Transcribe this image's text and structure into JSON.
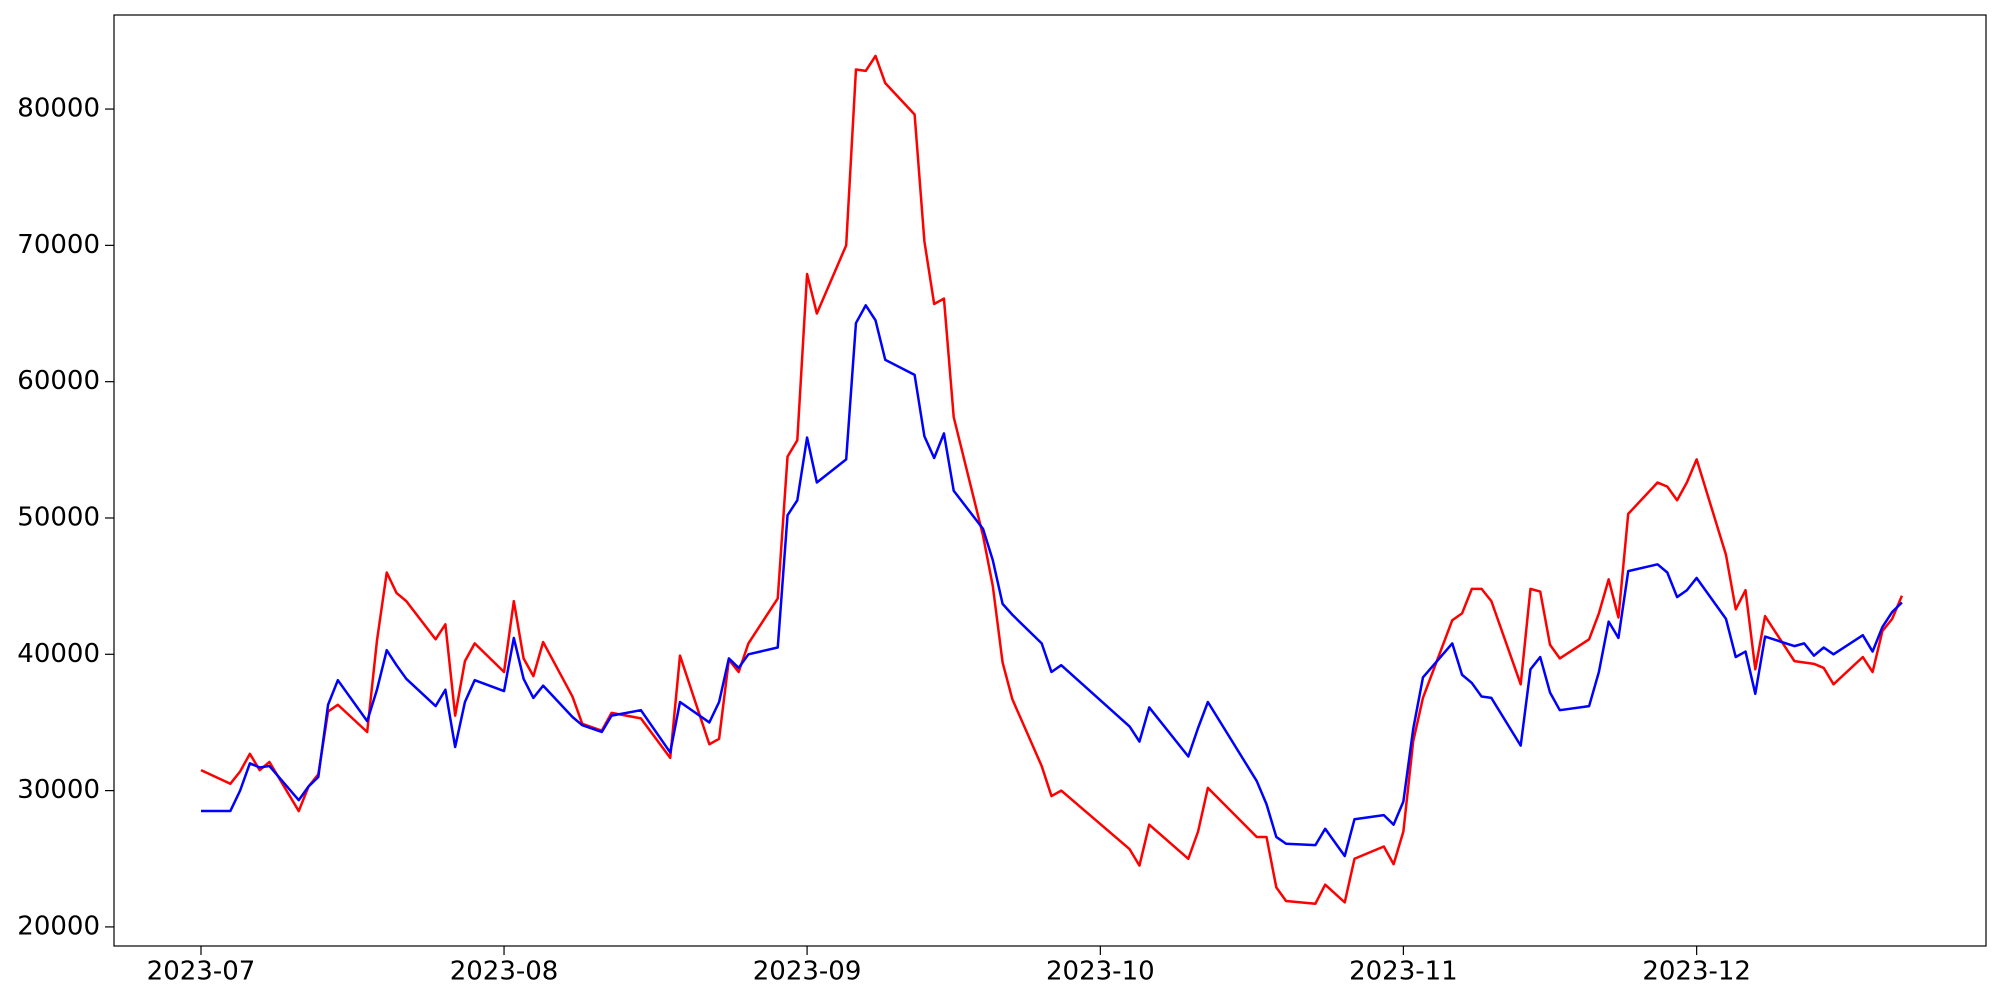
{
  "chart_data": {
    "type": "line",
    "x": [
      0,
      3,
      4,
      5,
      6,
      7,
      10,
      11,
      12,
      13,
      14,
      17,
      18,
      19,
      20,
      21,
      24,
      25,
      26,
      27,
      28,
      31,
      32,
      33,
      34,
      35,
      38,
      39,
      41,
      42,
      45,
      48,
      49,
      52,
      53,
      54,
      55,
      56,
      59,
      60,
      61,
      62,
      63,
      66,
      67,
      68,
      69,
      70,
      73,
      74,
      75,
      76,
      77,
      80,
      81,
      82,
      83,
      86,
      87,
      88,
      95,
      96,
      97,
      101,
      102,
      103,
      108,
      109,
      110,
      111,
      114,
      115,
      117,
      118,
      121,
      122,
      123,
      124,
      125,
      128,
      129,
      130,
      131,
      132,
      135,
      136,
      137,
      138,
      139,
      142,
      143,
      144,
      145,
      146,
      149,
      150,
      151,
      152,
      153,
      156,
      157,
      158,
      159,
      160,
      163,
      164,
      165,
      166,
      167,
      170,
      171,
      172,
      173,
      174
    ],
    "series": [
      {
        "color": "#ff0000",
        "values": [
          31500,
          30500,
          31400,
          32700,
          31500,
          32100,
          28500,
          30300,
          31200,
          35800,
          36300,
          34300,
          41000,
          46000,
          44500,
          43900,
          41100,
          42200,
          35500,
          39500,
          40800,
          38700,
          43900,
          39700,
          38400,
          40900,
          36900,
          34900,
          34400,
          35700,
          35300,
          32400,
          39900,
          33400,
          33800,
          39600,
          38700,
          40800,
          44100,
          54500,
          55700,
          67900,
          65000,
          70000,
          82900,
          82800,
          83900,
          81900,
          79600,
          70300,
          65700,
          66100,
          57400,
          48700,
          45000,
          39400,
          36700,
          31800,
          29600,
          30000,
          25700,
          24500,
          27500,
          25000,
          27000,
          30200,
          26600,
          26600,
          22900,
          21900,
          21700,
          23100,
          21800,
          25000,
          25900,
          24600,
          27000,
          33600,
          36800,
          42500,
          43000,
          44800,
          44800,
          43900,
          37800,
          44800,
          44600,
          40700,
          39700,
          41100,
          43000,
          45500,
          42700,
          50300,
          52600,
          52300,
          51300,
          52600,
          54300,
          47300,
          43300,
          44700,
          38900,
          42800,
          39500,
          39400,
          39300,
          39000,
          37800,
          39800,
          38700,
          41700,
          42600,
          44300
        ]
      },
      {
        "color": "#0000ff",
        "values": [
          28500,
          28500,
          30000,
          32000,
          31700,
          31800,
          29300,
          30300,
          31000,
          36300,
          38100,
          35100,
          37400,
          40300,
          39200,
          38200,
          36200,
          37400,
          33200,
          36500,
          38100,
          37300,
          41200,
          38200,
          36800,
          37700,
          35400,
          34800,
          34300,
          35500,
          35900,
          32800,
          36500,
          35000,
          36500,
          39700,
          39000,
          40000,
          40500,
          50200,
          51300,
          55900,
          52600,
          54300,
          64300,
          65600,
          64500,
          61600,
          60500,
          56000,
          54400,
          56200,
          52000,
          49200,
          46900,
          43700,
          42900,
          40800,
          38700,
          39200,
          34700,
          33600,
          36100,
          32500,
          34600,
          36500,
          30700,
          29000,
          26600,
          26100,
          26000,
          27200,
          25200,
          27900,
          28200,
          27500,
          29200,
          34500,
          38300,
          40800,
          38500,
          37900,
          36900,
          36800,
          33300,
          38900,
          39800,
          37200,
          35900,
          36200,
          38700,
          42400,
          41200,
          46100,
          46600,
          46000,
          44200,
          44700,
          45600,
          42600,
          39800,
          40200,
          37100,
          41300,
          40600,
          40800,
          39900,
          40500,
          40000,
          41400,
          40200,
          42000,
          43100,
          43800
        ]
      }
    ],
    "xlim": [
      -8.9,
      182.6
    ],
    "xticks": [
      {
        "value": 0,
        "label": "2023-07"
      },
      {
        "value": 31,
        "label": "2023-08"
      },
      {
        "value": 62,
        "label": "2023-09"
      },
      {
        "value": 92,
        "label": "2023-10"
      },
      {
        "value": 123,
        "label": "2023-11"
      },
      {
        "value": 153,
        "label": "2023-12"
      }
    ],
    "ylim": [
      18600,
      86900
    ],
    "yticks": [
      20000,
      30000,
      40000,
      50000,
      60000,
      70000,
      80000
    ]
  }
}
